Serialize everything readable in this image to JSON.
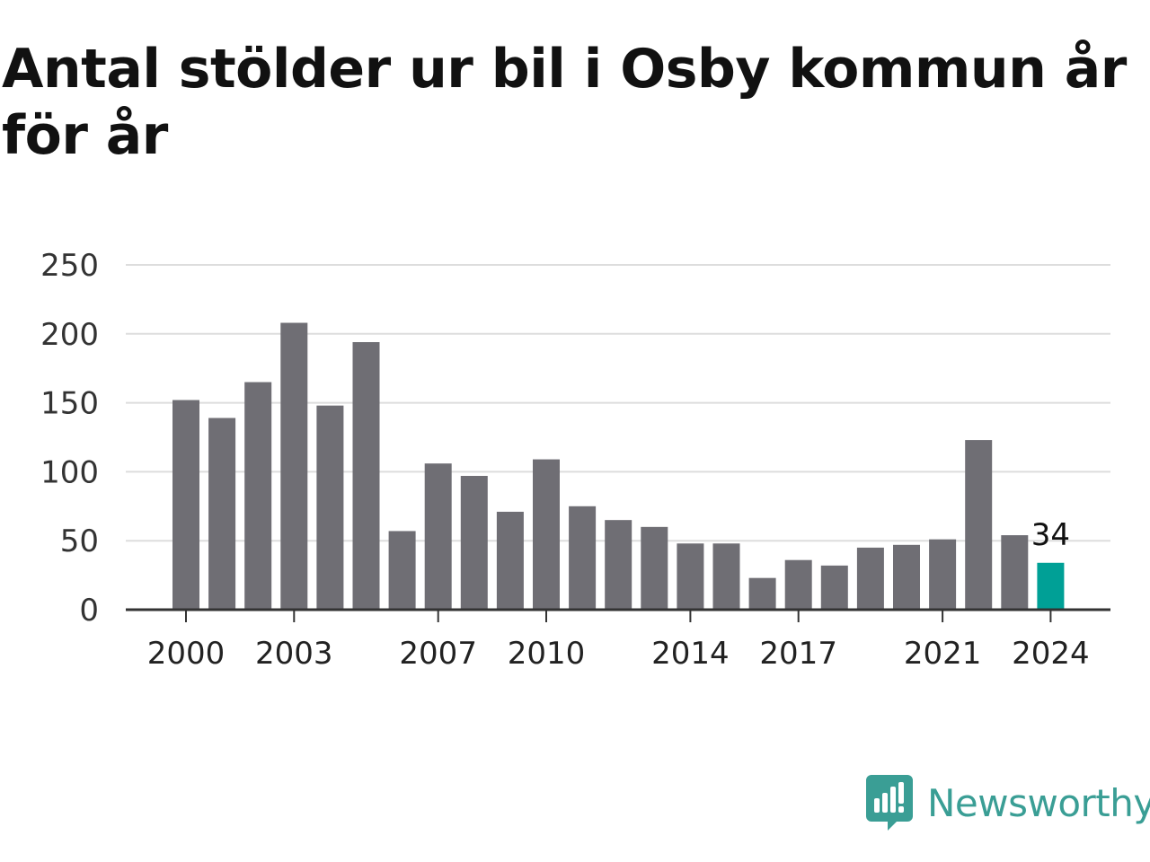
{
  "header": {
    "title": "Antal stölder ur bil i Osby kommun år för år"
  },
  "brand": {
    "name": "Newsworthy",
    "icon": "newsworthy-logo-icon",
    "color": "#3a9e95"
  },
  "chart_data": {
    "type": "bar",
    "title": "Antal stölder ur bil i Osby kommun år för år",
    "xlabel": "",
    "ylabel": "",
    "ylim": [
      0,
      250
    ],
    "yticks": [
      "0",
      "50",
      "100",
      "150",
      "200",
      "250"
    ],
    "xticks": [
      "2000",
      "2003",
      "2007",
      "2010",
      "2014",
      "2017",
      "2021",
      "2024"
    ],
    "grid": true,
    "categories": [
      "2000",
      "2001",
      "2002",
      "2003",
      "2004",
      "2005",
      "2006",
      "2007",
      "2008",
      "2009",
      "2010",
      "2011",
      "2012",
      "2013",
      "2014",
      "2015",
      "2016",
      "2017",
      "2018",
      "2019",
      "2020",
      "2021",
      "2022",
      "2023",
      "2024"
    ],
    "values": [
      152,
      139,
      165,
      208,
      148,
      194,
      57,
      106,
      97,
      71,
      109,
      75,
      65,
      60,
      48,
      48,
      23,
      36,
      32,
      45,
      47,
      51,
      123,
      54,
      34
    ],
    "highlight": {
      "category": "2024",
      "label": "34"
    },
    "colors": {
      "bar": "#6f6e74",
      "highlight": "#00a096",
      "grid": "#dddddd",
      "axis": "#333333"
    }
  }
}
